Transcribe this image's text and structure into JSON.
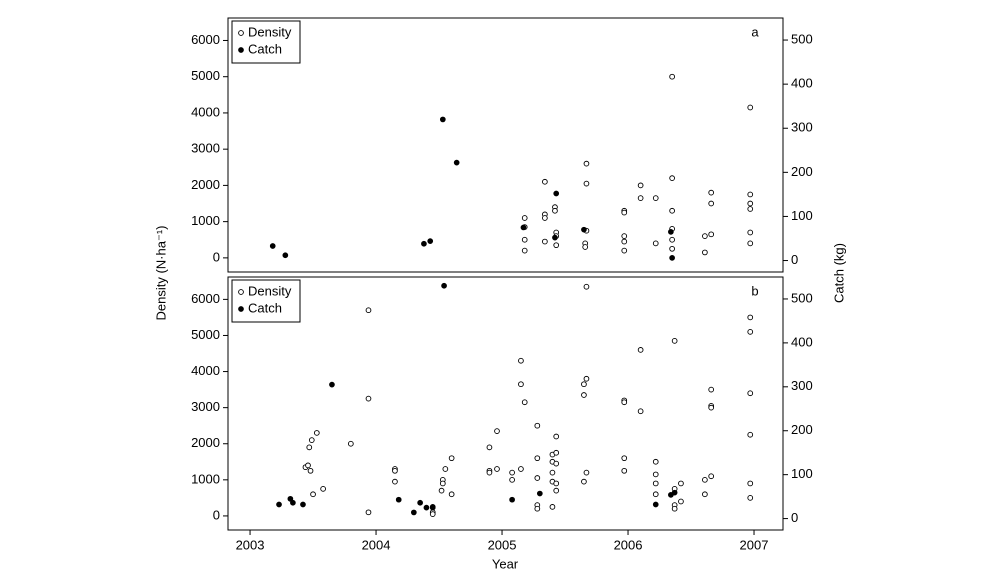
{
  "chart_data": [
    {
      "type": "scatter",
      "label": "a",
      "ylabel": "Density (N·ha⁻¹)",
      "y2label": "Catch (kg)",
      "xlim": [
        2002.825,
        2007.23
      ],
      "ylim": [
        -390,
        6620
      ],
      "y2lim": [
        -26,
        550
      ],
      "yticks": [
        0,
        1000,
        2000,
        3000,
        4000,
        5000,
        6000
      ],
      "y2ticks": [
        0,
        100,
        200,
        300,
        400,
        500
      ],
      "legend": "upper left",
      "series": [
        {
          "name": "Density",
          "marker": "open",
          "color": "#000000",
          "axis": "y",
          "x": [
            2005.18,
            2005.18,
            2005.18,
            2005.18,
            2005.34,
            2005.34,
            2005.34,
            2005.34,
            2005.42,
            2005.42,
            2005.43,
            2005.43,
            2005.43,
            2005.67,
            2005.67,
            2005.67,
            2005.66,
            2005.66,
            2005.97,
            2005.97,
            2005.97,
            2005.97,
            2005.97,
            2006.1,
            2006.1,
            2006.22,
            2006.22,
            2006.35,
            2006.35,
            2006.35,
            2006.35,
            2006.35,
            2006.35,
            2006.61,
            2006.61,
            2006.66,
            2006.66,
            2006.66,
            2006.97,
            2006.97,
            2006.97,
            2006.97,
            2006.97,
            2006.97
          ],
          "values": [
            1100,
            850,
            500,
            200,
            2100,
            1200,
            1100,
            450,
            1400,
            1300,
            700,
            600,
            350,
            2600,
            2050,
            750,
            400,
            300,
            1300,
            1250,
            600,
            450,
            200,
            2000,
            1650,
            1650,
            400,
            5000,
            2200,
            1300,
            800,
            500,
            250,
            600,
            150,
            1800,
            1500,
            650,
            4150,
            1750,
            1500,
            1350,
            700,
            400
          ]
        },
        {
          "name": "Catch",
          "marker": "filled",
          "color": "#000000",
          "axis": "y2",
          "x": [
            2003.18,
            2003.28,
            2004.38,
            2004.43,
            2004.53,
            2004.64,
            2005.17,
            2005.43,
            2005.42,
            2005.65,
            2006.34,
            2006.35
          ],
          "values": [
            33,
            12,
            38,
            44,
            320,
            222,
            75,
            152,
            52,
            70,
            65,
            6
          ]
        }
      ]
    },
    {
      "type": "scatter",
      "label": "b",
      "xlabel": "Year",
      "xlim": [
        2002.825,
        2007.23
      ],
      "ylim": [
        -390,
        6620
      ],
      "y2lim": [
        -26,
        550
      ],
      "xticks": [
        2003,
        2004,
        2005,
        2006,
        2007
      ],
      "yticks": [
        0,
        1000,
        2000,
        3000,
        4000,
        5000,
        6000
      ],
      "y2ticks": [
        0,
        100,
        200,
        300,
        400,
        500
      ],
      "legend": "upper left",
      "series": [
        {
          "name": "Density",
          "marker": "open",
          "color": "#000000",
          "axis": "y",
          "x": [
            2003.44,
            2003.46,
            2003.48,
            2003.47,
            2003.49,
            2003.53,
            2003.58,
            2003.5,
            2003.8,
            2003.94,
            2003.94,
            2003.94,
            2004.15,
            2004.15,
            2004.15,
            2004.45,
            2004.45,
            2004.45,
            2004.53,
            2004.53,
            2004.52,
            2004.55,
            2004.6,
            2004.6,
            2004.9,
            2004.9,
            2004.9,
            2004.96,
            2004.96,
            2005.08,
            2005.08,
            2005.15,
            2005.15,
            2005.15,
            2005.18,
            2005.28,
            2005.28,
            2005.28,
            2005.28,
            2005.28,
            2005.4,
            2005.4,
            2005.4,
            2005.4,
            2005.4,
            2005.43,
            2005.43,
            2005.43,
            2005.43,
            2005.43,
            2005.65,
            2005.65,
            2005.65,
            2005.67,
            2005.67,
            2005.67,
            2005.97,
            2005.97,
            2005.97,
            2005.97,
            2006.1,
            2006.1,
            2006.22,
            2006.22,
            2006.22,
            2006.22,
            2006.37,
            2006.37,
            2006.37,
            2006.37,
            2006.42,
            2006.42,
            2006.61,
            2006.61,
            2006.66,
            2006.66,
            2006.66,
            2006.66,
            2006.97,
            2006.97,
            2006.97,
            2006.97,
            2006.97,
            2006.97
          ],
          "values": [
            1350,
            1400,
            1250,
            1900,
            2100,
            2300,
            750,
            600,
            2000,
            5700,
            3250,
            100,
            1300,
            1250,
            950,
            250,
            100,
            50,
            1000,
            900,
            700,
            1300,
            1600,
            600,
            1900,
            1250,
            1200,
            2350,
            1300,
            1200,
            1000,
            4300,
            3650,
            1300,
            3150,
            2500,
            1600,
            1050,
            300,
            200,
            1700,
            1500,
            1200,
            950,
            250,
            2200,
            1750,
            1450,
            900,
            700,
            3650,
            3350,
            950,
            6350,
            3800,
            1200,
            3200,
            3150,
            1600,
            1250,
            4600,
            2900,
            1500,
            1150,
            900,
            600,
            4850,
            750,
            300,
            200,
            900,
            400,
            1000,
            600,
            3500,
            3050,
            3000,
            1100,
            5500,
            5100,
            3400,
            2250,
            900,
            500
          ]
        },
        {
          "name": "Catch",
          "marker": "filled",
          "color": "#000000",
          "axis": "y2",
          "x": [
            2003.23,
            2003.32,
            2003.34,
            2003.42,
            2003.65,
            2004.18,
            2004.3,
            2004.35,
            2004.4,
            2004.45,
            2004.54,
            2005.08,
            2005.3,
            2006.22,
            2006.34,
            2006.37
          ],
          "values": [
            32,
            45,
            36,
            32,
            305,
            43,
            14,
            36,
            25,
            25,
            530,
            43,
            57,
            32,
            54,
            59
          ]
        }
      ]
    }
  ]
}
